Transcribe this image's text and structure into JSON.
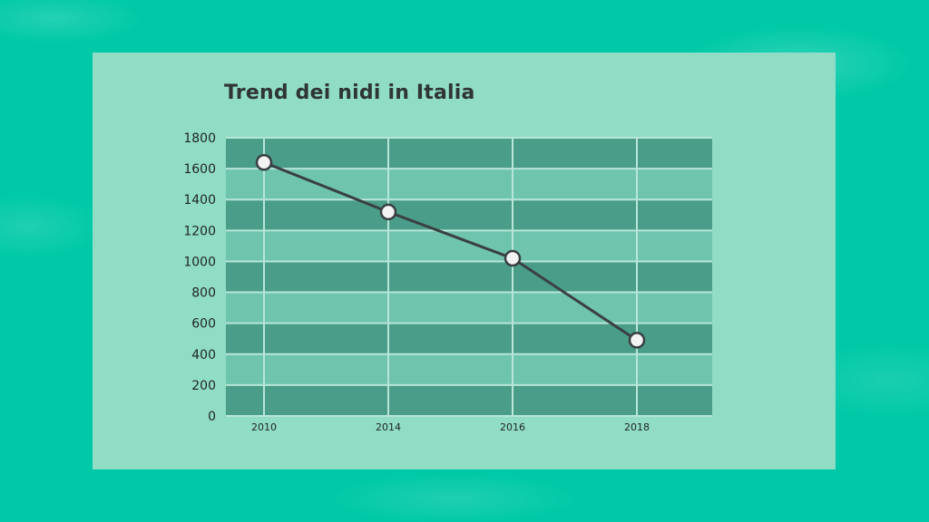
{
  "chart_data": {
    "type": "line",
    "title": "Trend dei nidi in Italia",
    "xlabel": "",
    "ylabel": "",
    "categories": [
      "2010",
      "2014",
      "2016",
      "2018"
    ],
    "values": [
      1640,
      1320,
      1020,
      490
    ],
    "ylim": [
      0,
      1800
    ],
    "yticks": [
      0,
      200,
      400,
      600,
      800,
      1000,
      1200,
      1400,
      1600,
      1800
    ],
    "grid": true,
    "legend": "none"
  },
  "colors": {
    "background": "#00c9a7",
    "panel": "#90dcc5",
    "band_dark": "#4a9d88",
    "band_light": "#6fc4ae",
    "grid": "#b7e6d8",
    "line": "#3a3f41",
    "marker_fill": "#f3f3f3"
  }
}
